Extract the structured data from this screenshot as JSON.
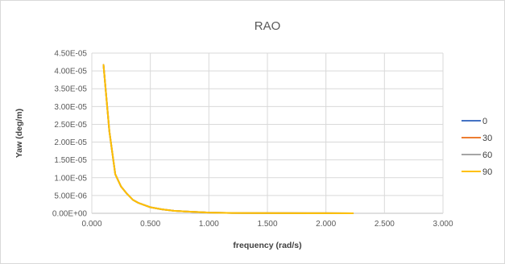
{
  "chart_data": {
    "type": "line",
    "title": "RAO",
    "xlabel": "frequency (rad/s)",
    "ylabel": "Yaw (deg/m)",
    "xlim": [
      0,
      3
    ],
    "ylim": [
      0,
      4.5e-05
    ],
    "x_tick_labels": [
      "0.000",
      "0.500",
      "1.000",
      "1.500",
      "2.000",
      "2.500",
      "3.000"
    ],
    "y_tick_labels": [
      "0.00E+00",
      "5.00E-06",
      "1.00E-05",
      "1.50E-05",
      "2.00E-05",
      "2.50E-05",
      "3.00E-05",
      "3.50E-05",
      "4.00E-05",
      "4.50E-05"
    ],
    "grid": true,
    "legend_position": "right",
    "x": [
      0.1,
      0.15,
      0.2,
      0.25,
      0.3,
      0.35,
      0.4,
      0.5,
      0.6,
      0.7,
      0.8,
      1.0,
      1.2,
      1.5,
      2.0,
      2.23
    ],
    "series": [
      {
        "name": "0",
        "color": "#4472C4",
        "values": [
          4.17e-05,
          2.3e-05,
          1.1e-05,
          7.5e-06,
          5.5e-06,
          3.8e-06,
          2.9e-06,
          1.7e-06,
          1.1e-06,
          7e-07,
          5e-07,
          2e-07,
          1e-07,
          5e-08,
          2e-08,
          1e-08
        ]
      },
      {
        "name": "30",
        "color": "#ED7D31",
        "values": [
          4.17e-05,
          2.3e-05,
          1.1e-05,
          7.5e-06,
          5.5e-06,
          3.8e-06,
          2.9e-06,
          1.7e-06,
          1.1e-06,
          7e-07,
          5e-07,
          2e-07,
          1e-07,
          5e-08,
          2e-08,
          1e-08
        ]
      },
      {
        "name": "60",
        "color": "#A5A5A5",
        "values": [
          4.17e-05,
          2.3e-05,
          1.1e-05,
          7.5e-06,
          5.5e-06,
          3.8e-06,
          2.9e-06,
          1.7e-06,
          1.1e-06,
          7e-07,
          5e-07,
          2e-07,
          1e-07,
          5e-08,
          2e-08,
          1e-08
        ]
      },
      {
        "name": "90",
        "color": "#FFC000",
        "values": [
          4.17e-05,
          2.3e-05,
          1.1e-05,
          7.5e-06,
          5.5e-06,
          3.8e-06,
          2.9e-06,
          1.7e-06,
          1.1e-06,
          7e-07,
          5e-07,
          2e-07,
          1e-07,
          5e-08,
          2e-08,
          1e-08
        ]
      }
    ]
  }
}
